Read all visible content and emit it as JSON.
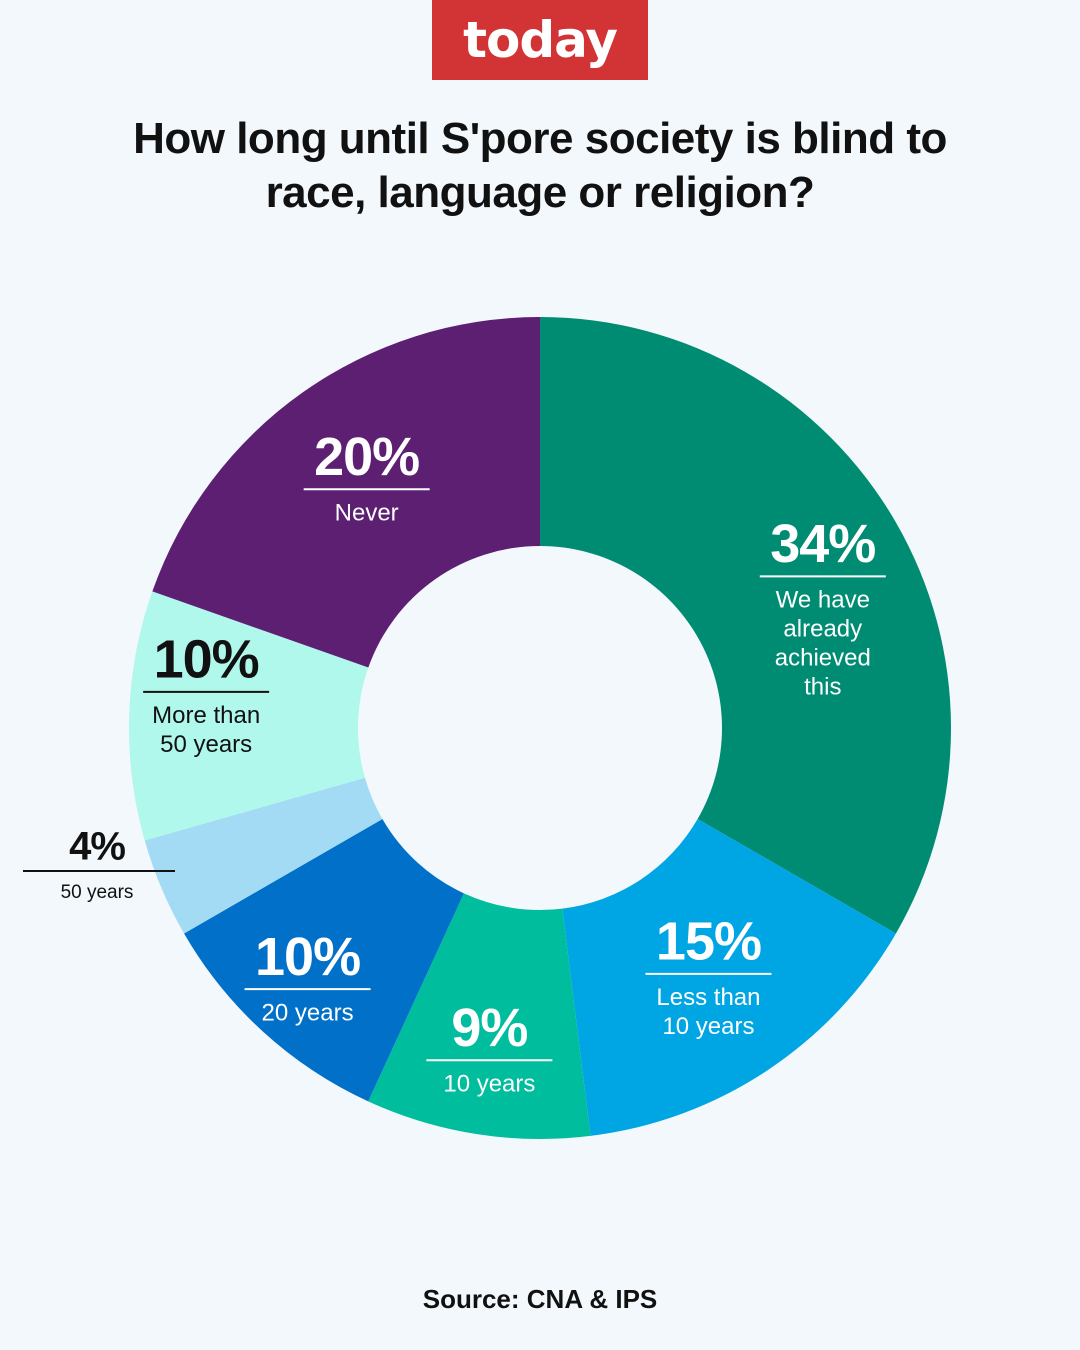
{
  "brand": {
    "logo_text": "today",
    "color": "#d23435"
  },
  "title_lines": [
    "How long until S'pore society is blind to",
    "race, language or religion?"
  ],
  "source": "Source: CNA & IPS",
  "chart_data": {
    "type": "pie",
    "style": "donut",
    "start_angle": "12 o'clock",
    "direction": "clockwise",
    "slices": [
      {
        "label_lines": [
          "We have",
          "already",
          "achieved",
          "this"
        ],
        "value": 34,
        "value_label": "34%",
        "color": "#008c73",
        "text_color": "#ffffff"
      },
      {
        "label_lines": [
          "Less than",
          "10 years"
        ],
        "value": 15,
        "value_label": "15%",
        "color": "#00a5e3",
        "text_color": "#ffffff"
      },
      {
        "label_lines": [
          "10 years"
        ],
        "value": 9,
        "value_label": "9%",
        "color": "#00bd9e",
        "text_color": "#ffffff"
      },
      {
        "label_lines": [
          "20 years"
        ],
        "value": 10,
        "value_label": "10%",
        "color": "#0070c8",
        "text_color": "#ffffff"
      },
      {
        "label_lines": [
          "50 years"
        ],
        "value": 4,
        "value_label": "4%",
        "color": "#a3dbf5",
        "text_color": "#111111"
      },
      {
        "label_lines": [
          "More than",
          "50 years"
        ],
        "value": 10,
        "value_label": "10%",
        "color": "#b1f8ec",
        "text_color": "#111111"
      },
      {
        "label_lines": [
          "Never"
        ],
        "value": 20,
        "value_label": "20%",
        "color": "#5c1f72",
        "text_color": "#ffffff"
      }
    ]
  }
}
